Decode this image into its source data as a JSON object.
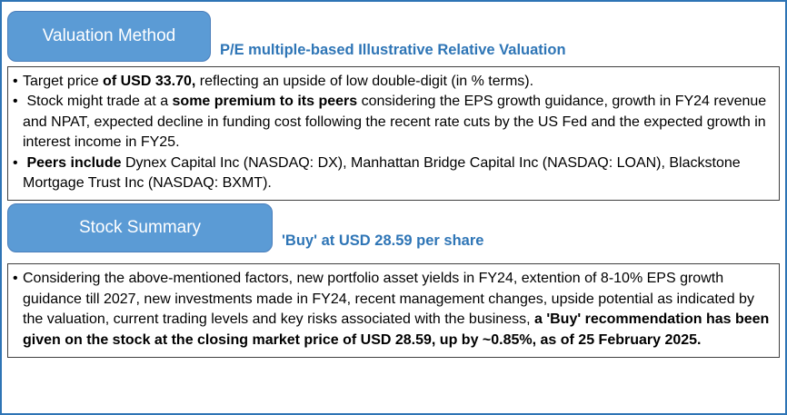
{
  "bullet_glyph": "•",
  "colors": {
    "page_border": "#2E74B5",
    "tab_fill": "#5B9BD5",
    "tab_border": "#4A7EBB",
    "tab_text": "#FFFFFF",
    "title_text": "#2E75B6",
    "box_border": "#3F3F3F",
    "body_text": "#000000"
  },
  "sections": [
    {
      "tab_label": "Valuation Method",
      "title": "P/E multiple-based Illustrative Relative Valuation",
      "bullets": [
        [
          {
            "text": "Target price ",
            "bold": false
          },
          {
            "text": "of USD 33.70,",
            "bold": true
          },
          {
            "text": " reflecting an upside of low double-digit (in % terms).",
            "bold": false
          }
        ],
        [
          {
            "text": " Stock might trade at a ",
            "bold": false
          },
          {
            "text": "some premium to its peers",
            "bold": true
          },
          {
            "text": " considering the EPS growth guidance, growth in FY24 revenue and NPAT, expected decline in funding cost following the recent rate cuts by the US Fed and the expected growth in interest income in FY25.",
            "bold": false
          }
        ],
        [
          {
            "text": " ",
            "bold": false
          },
          {
            "text": "Peers include",
            "bold": true
          },
          {
            "text": " Dynex Capital Inc (NASDAQ: DX), Manhattan Bridge Capital Inc (NASDAQ: LOAN), Blackstone Mortgage Trust Inc (NASDAQ: BXMT).",
            "bold": false
          }
        ]
      ]
    },
    {
      "tab_label": "Stock Summary",
      "title": "'Buy' at USD 28.59 per share",
      "bullets": [
        [
          {
            "text": "Considering the above-mentioned factors, new portfolio asset yields in FY24, extention of 8-10% EPS growth guidance till 2027, new investments made in FY24, recent management changes, upside potential as indicated by the valuation, current trading levels and key risks associated with the business, ",
            "bold": false
          },
          {
            "text": "a 'Buy' recommendation has been given on the stock at the closing market price of USD 28.59, up by ~0.85%, as of 25 February 2025.",
            "bold": true
          }
        ]
      ]
    }
  ]
}
